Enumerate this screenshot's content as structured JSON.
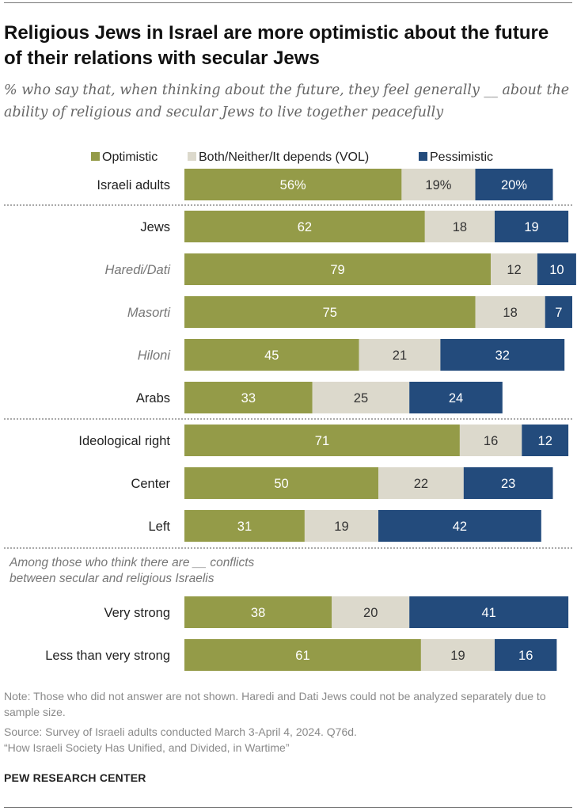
{
  "title": "Religious Jews in Israel are more optimistic about the future of their relations with secular Jews",
  "subtitle": "% who say that, when thinking about the future, they feel generally __ about the ability of religious and secular Jews to live together peacefully",
  "chart_data": {
    "type": "bar",
    "orientation": "horizontal",
    "stacked": true,
    "legend_position": "top",
    "series": [
      {
        "name": "Optimistic",
        "color": "#949b48"
      },
      {
        "name": "Both/Neither/It depends (VOL)",
        "color": "#dcd9cc"
      },
      {
        "name": "Pessimistic",
        "color": "#234b7c"
      }
    ],
    "rows": [
      {
        "label": "Israeli adults",
        "italic": false,
        "values": [
          56,
          19,
          20
        ],
        "labels": [
          "56%",
          "19%",
          "20%"
        ]
      },
      {
        "label": "Jews",
        "italic": false,
        "values": [
          62,
          18,
          19
        ],
        "labels": [
          "62",
          "18",
          "19"
        ]
      },
      {
        "label": "Haredi/Dati",
        "italic": true,
        "values": [
          79,
          12,
          10
        ],
        "labels": [
          "79",
          "12",
          "10"
        ]
      },
      {
        "label": "Masorti",
        "italic": true,
        "values": [
          75,
          18,
          7
        ],
        "labels": [
          "75",
          "18",
          "7"
        ]
      },
      {
        "label": "Hiloni",
        "italic": true,
        "values": [
          45,
          21,
          32
        ],
        "labels": [
          "45",
          "21",
          "32"
        ]
      },
      {
        "label": "Arabs",
        "italic": false,
        "values": [
          33,
          25,
          24
        ],
        "labels": [
          "33",
          "25",
          "24"
        ]
      },
      {
        "label": "Ideological right",
        "italic": false,
        "values": [
          71,
          16,
          12
        ],
        "labels": [
          "71",
          "16",
          "12"
        ]
      },
      {
        "label": "Center",
        "italic": false,
        "values": [
          50,
          22,
          23
        ],
        "labels": [
          "50",
          "22",
          "23"
        ]
      },
      {
        "label": "Left",
        "italic": false,
        "values": [
          31,
          19,
          42
        ],
        "labels": [
          "31",
          "19",
          "42"
        ]
      },
      {
        "label": "Very strong",
        "italic": false,
        "values": [
          38,
          20,
          41
        ],
        "labels": [
          "38",
          "20",
          "41"
        ]
      },
      {
        "label": "Less than very strong",
        "italic": false,
        "values": [
          61,
          19,
          16
        ],
        "labels": [
          "61",
          "19",
          "16"
        ]
      }
    ],
    "group_note": [
      "Among those who think there are __ conflicts",
      "between secular and religious Israelis"
    ],
    "xlim": [
      0,
      100
    ]
  },
  "note": "Note: Those who did not answer are not shown. Haredi and Dati Jews could not be analyzed separately due to sample size.",
  "source": "Source: Survey of Israeli adults conducted March 3-April 4, 2024. Q76d.",
  "report": "“How Israeli Society Has Unified, and Divided, in Wartime”",
  "org": "PEW RESEARCH CENTER"
}
